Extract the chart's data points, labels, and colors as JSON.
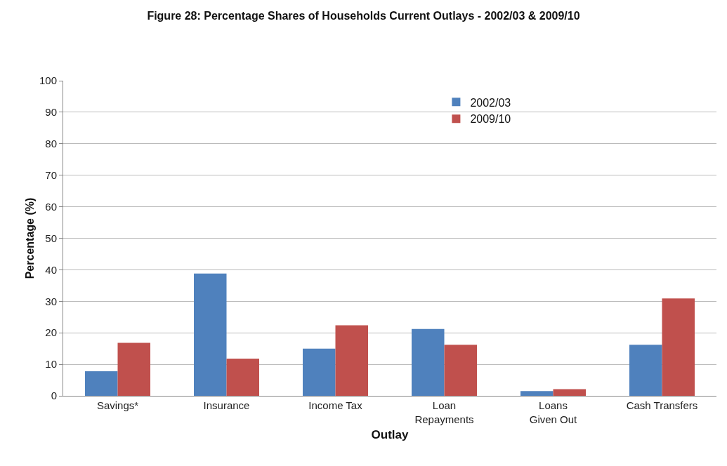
{
  "chart_data": {
    "type": "bar",
    "title": "Figure 28: Percentage Shares of Households Current Outlays - 2002/03 & 2009/10",
    "xlabel": "Outlay",
    "ylabel": "Percentage (%)",
    "categories": [
      "Savings*",
      "Insurance",
      "Income Tax",
      "Loan Repayments",
      "Loans Given Out",
      "Cash Transfers"
    ],
    "series": [
      {
        "name": "2002/03",
        "color": "#4f81bd",
        "values": [
          7.8,
          38.8,
          15,
          21.2,
          1.5,
          16.2
        ]
      },
      {
        "name": "2009/10",
        "color": "#c0504d",
        "values": [
          16.8,
          11.8,
          22.4,
          16.2,
          2.1,
          30.9
        ]
      }
    ],
    "ylim": [
      0,
      100
    ],
    "yticks": [
      0,
      10,
      20,
      30,
      40,
      50,
      60,
      70,
      80,
      90,
      100
    ],
    "grid": "y",
    "legend": "top right"
  }
}
